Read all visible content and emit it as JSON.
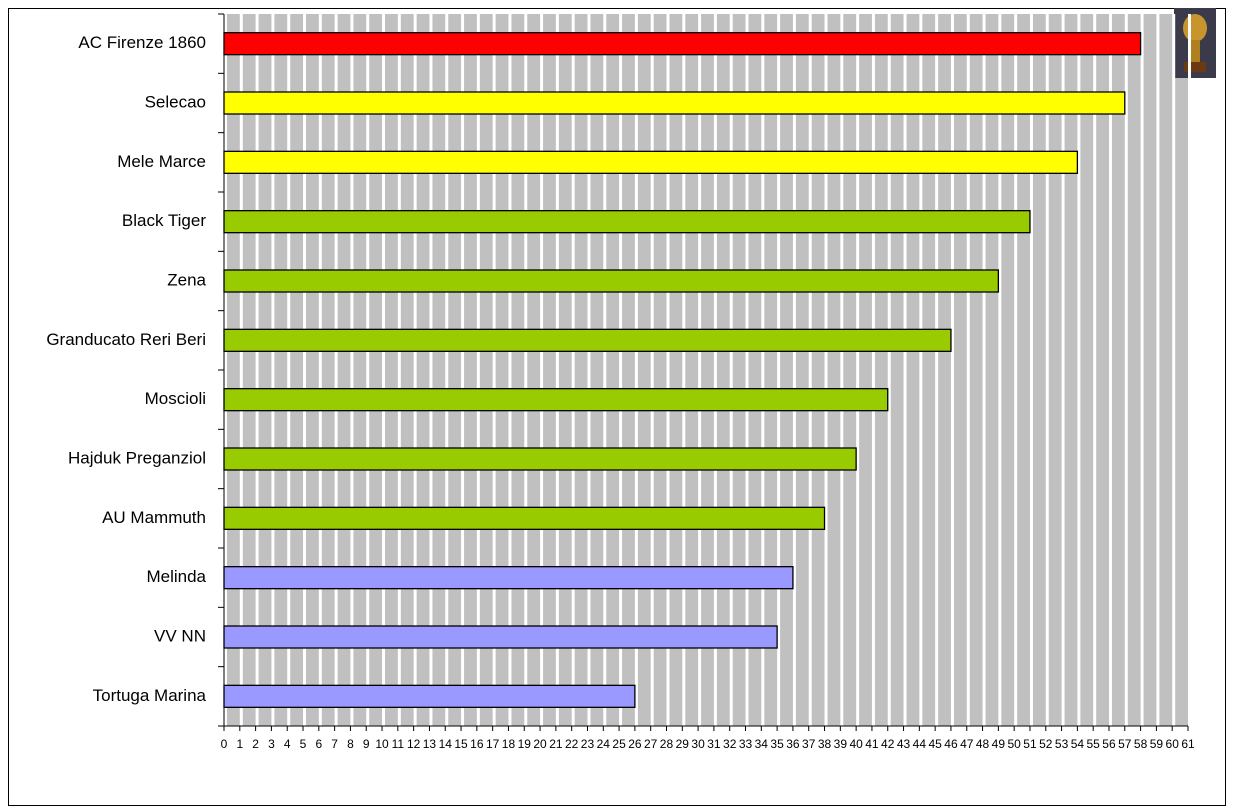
{
  "chart_data": {
    "type": "hbar",
    "categories": [
      "AC Firenze 1860",
      "Selecao",
      "Mele Marce",
      "Black Tiger",
      "Zena",
      "Granducato Reri Beri",
      "Moscioli",
      "Hajduk Preganziol",
      "AU Mammuth",
      "Melinda",
      "VV NN",
      "Tortuga Marina"
    ],
    "values": [
      58,
      57,
      54,
      51,
      49,
      46,
      42,
      40,
      38,
      36,
      35,
      26
    ],
    "colors": [
      "#ff0000",
      "#ffff00",
      "#ffff00",
      "#99cc00",
      "#99cc00",
      "#99cc00",
      "#99cc00",
      "#99cc00",
      "#99cc00",
      "#9999ff",
      "#9999ff",
      "#9999ff"
    ],
    "xlim": [
      0,
      61
    ],
    "xticks": [
      0,
      1,
      2,
      3,
      4,
      5,
      6,
      7,
      8,
      9,
      10,
      11,
      12,
      13,
      14,
      15,
      16,
      17,
      18,
      19,
      20,
      21,
      22,
      23,
      24,
      25,
      26,
      27,
      28,
      29,
      30,
      31,
      32,
      33,
      34,
      35,
      36,
      37,
      38,
      39,
      40,
      41,
      42,
      43,
      44,
      45,
      46,
      47,
      48,
      49,
      50,
      51,
      52,
      53,
      54,
      55,
      56,
      57,
      58,
      59,
      60,
      61
    ],
    "grid": true
  }
}
